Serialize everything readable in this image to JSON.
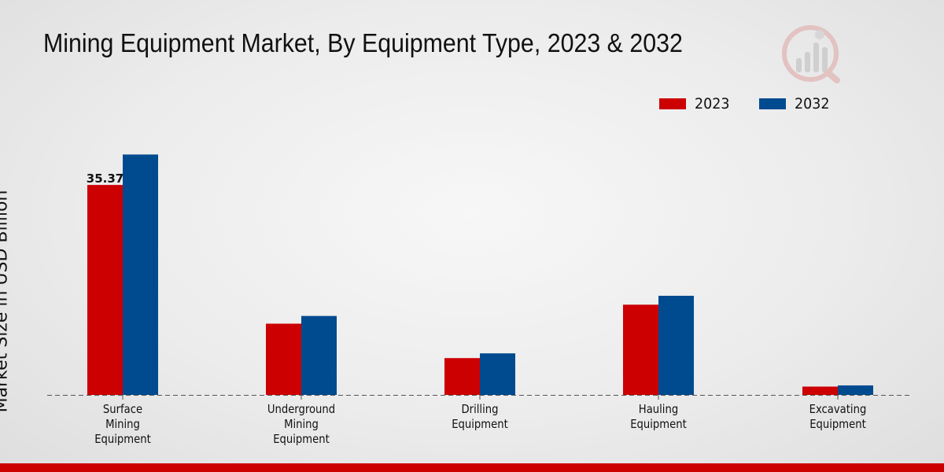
{
  "chart_data": {
    "type": "bar",
    "title": "Mining Equipment Market, By Equipment Type, 2023 & 2032",
    "xlabel": "",
    "ylabel": "Market Size in USD Billion",
    "categories": [
      [
        "Surface",
        "Mining",
        "Equipment"
      ],
      [
        "Underground",
        "Mining",
        "Equipment"
      ],
      [
        "Drilling",
        "Equipment"
      ],
      [
        "Hauling",
        "Equipment"
      ],
      [
        "Excavating",
        "Equipment"
      ]
    ],
    "series": [
      {
        "name": "2023",
        "color": "#cc0000",
        "values": [
          35.37,
          12.0,
          6.2,
          15.2,
          1.4
        ]
      },
      {
        "name": "2032",
        "color": "#004a8f",
        "values": [
          40.5,
          13.3,
          7.0,
          16.7,
          1.6
        ]
      }
    ],
    "data_labels": [
      {
        "series": 0,
        "index": 0,
        "text": "35.37"
      }
    ],
    "ylim": [
      0,
      44
    ],
    "grid": false,
    "legend_position": "top-right"
  }
}
